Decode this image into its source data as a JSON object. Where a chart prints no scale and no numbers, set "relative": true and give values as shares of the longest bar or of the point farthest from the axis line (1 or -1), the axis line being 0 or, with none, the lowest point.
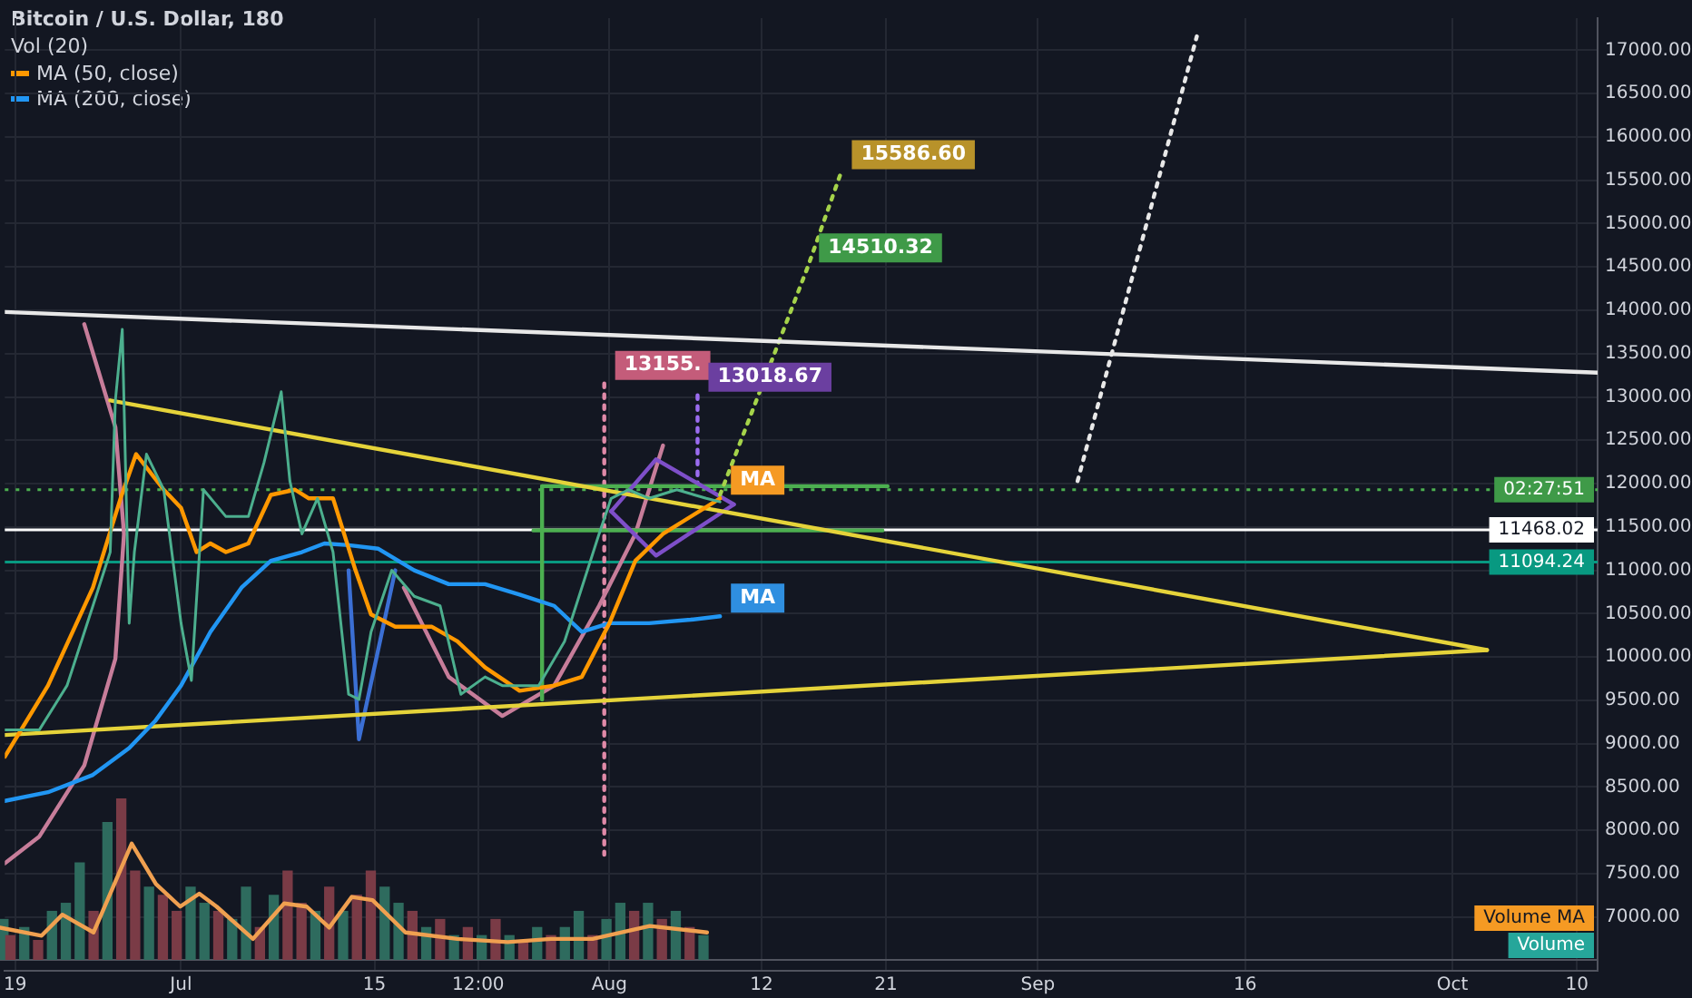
{
  "chart_data": [
    {
      "type": "line",
      "title": "Bitcoin / U.S. Dollar, 180",
      "legend": "top left",
      "grid": true,
      "marker": "none",
      "xlim": [
        "--06-18T06:00",
        "--10-11T12:00"
      ],
      "ylim": [
        6380,
        17370
      ],
      "xticks": [
        {
          "value": "--06-19",
          "label": "19"
        },
        {
          "value": "--07-01",
          "label": "Jul"
        },
        {
          "value": "--07-15",
          "label": "15"
        },
        {
          "value": "--07-22T12:00",
          "label": "12:00"
        },
        {
          "value": "--08-01",
          "label": "Aug"
        },
        {
          "value": "--08-12",
          "label": "12"
        },
        {
          "value": "--08-21",
          "label": "21"
        },
        {
          "value": "--09-01",
          "label": "Sep"
        },
        {
          "value": "--09-16",
          "label": "16"
        },
        {
          "value": "--10-01",
          "label": "Oct"
        },
        {
          "value": "--10-10",
          "label": "10"
        }
      ],
      "yticks": [
        {
          "value": 7000,
          "label": "7000.00"
        },
        {
          "value": 7500,
          "label": "7500.00"
        },
        {
          "value": 8000,
          "label": "8000.00"
        },
        {
          "value": 8500,
          "label": "8500.00"
        },
        {
          "value": 9000,
          "label": "9000.00"
        },
        {
          "value": 9500,
          "label": "9500.00"
        },
        {
          "value": 10000,
          "label": "10000.00"
        },
        {
          "value": 10500,
          "label": "10500.00"
        },
        {
          "value": 11000,
          "label": "11000.00"
        },
        {
          "value": 11500,
          "label": "11500.00"
        },
        {
          "value": 12000,
          "label": "12000.00"
        },
        {
          "value": 12500,
          "label": "12500.00"
        },
        {
          "value": 13000,
          "label": "13000.00"
        },
        {
          "value": 13500,
          "label": "13500.00"
        },
        {
          "value": 14000,
          "label": "14000.00"
        },
        {
          "value": 14500,
          "label": "14500.00"
        },
        {
          "value": 15000,
          "label": "15000.00"
        },
        {
          "value": 15500,
          "label": "15500.00"
        },
        {
          "value": 16000,
          "label": "16000.00"
        },
        {
          "value": 16500,
          "label": "16500.00"
        },
        {
          "value": 17000,
          "label": "17000.00"
        }
      ],
      "series": [
        {
          "color": "#4caf8e",
          "x": [
            "--06-18T06:00",
            "--06-20T18:00",
            "--06-22T18:00",
            "--06-24T15:00",
            "--06-25T21:00",
            "--06-26T06:00",
            "--06-26T18:00",
            "--06-27T06:00",
            "--06-27T15:00",
            "--06-28T12:00",
            "--06-29T18:00",
            "--07-01T00:00",
            "--07-01T18:00",
            "--07-02T15:00",
            "--07-04T06:00",
            "--07-05T21:00",
            "--07-07T00:00",
            "--07-08T06:00",
            "--07-08T21:00",
            "--07-09T18:00",
            "--07-10T21:00",
            "--07-12T00:00",
            "--07-13T03:00",
            "--07-13T21:00",
            "--07-14T18:00",
            "--07-16T06:00",
            "--07-17T21:00",
            "--07-19T18:00",
            "--07-21T06:00",
            "--07-23T00:00",
            "--07-24T06:00",
            "--07-26T21:00",
            "--07-28T18:00",
            "--07-30T00:00",
            "--07-31T06:00",
            "--08-01T03:00",
            "--08-02T09:00",
            "--08-03T21:00",
            "--08-05T21:00",
            "--08-08T00:00",
            "--08-09T00:00"
          ],
          "values": [
            9160,
            9160,
            9670,
            10590,
            11210,
            12960,
            13780,
            10390,
            11210,
            12340,
            11930,
            10390,
            9730,
            11930,
            11620,
            11620,
            12240,
            13060,
            12030,
            11420,
            11830,
            11210,
            9570,
            9510,
            10290,
            11000,
            10700,
            10590,
            9570,
            9770,
            9670,
            9670,
            10180,
            10800,
            11420,
            11830,
            11930,
            11830,
            11930,
            11830,
            11790
          ]
        },
        {
          "name": "MA (50, close)",
          "color": "#ff9800",
          "x": [
            "--06-18T06:00",
            "--06-21T09:00",
            "--06-24T15:00",
            "--06-26T15:00",
            "--06-27T18:00",
            "--06-29T18:00",
            "--07-01T00:00",
            "--07-02T03:00",
            "--07-03T03:00",
            "--07-04T06:00",
            "--07-05T21:00",
            "--07-07T12:00",
            "--07-09T06:00",
            "--07-10T06:00",
            "--07-12T00:00",
            "--07-13T15:00",
            "--07-14T18:00",
            "--07-16T12:00",
            "--07-19T03:00",
            "--07-21T00:00",
            "--07-23T00:00",
            "--07-25T12:00",
            "--07-28T00:00",
            "--07-30T00:00",
            "--08-01T00:00",
            "--08-02T21:00",
            "--08-04T21:00",
            "--08-09T00:00"
          ],
          "values": [
            8850,
            9670,
            10800,
            11830,
            12340,
            11930,
            11720,
            11210,
            11310,
            11210,
            11310,
            11870,
            11930,
            11830,
            11830,
            11000,
            10490,
            10350,
            10350,
            10180,
            9880,
            9610,
            9670,
            9770,
            10390,
            11110,
            11420,
            11830
          ]
        },
        {
          "name": "MA (200, close)",
          "color": "#2196f3",
          "x": [
            "--06-18T06:00",
            "--06-21T09:00",
            "--06-24T15:00",
            "--06-27T06:00",
            "--06-29T03:00",
            "--07-01T00:00",
            "--07-03T03:00",
            "--07-05T09:00",
            "--07-07T12:00",
            "--07-09T18:00",
            "--07-11T09:00",
            "--07-13T03:00",
            "--07-15T06:00",
            "--07-17T21:00",
            "--07-20T09:00",
            "--07-23T00:00",
            "--07-25T12:00",
            "--07-28T00:00",
            "--07-30T00:00",
            "--08-01T00:00",
            "--08-03T21:00",
            "--08-06T21:00",
            "--08-09T00:00"
          ],
          "values": [
            8340,
            8440,
            8640,
            8950,
            9260,
            9670,
            10290,
            10800,
            11110,
            11210,
            11310,
            11290,
            11250,
            11000,
            10840,
            10840,
            10720,
            10590,
            10290,
            10390,
            10390,
            10430,
            10470
          ]
        },
        {
          "color": "#e5d33a",
          "x": [
            "--06-25T21:00",
            "--10-03T12:00"
          ],
          "values": [
            12960,
            10080
          ]
        },
        {
          "color": "#e5d33a",
          "x": [
            "--06-18T06:00",
            "--10-03T12:00"
          ],
          "values": [
            9100,
            10080
          ]
        },
        {
          "color": "#e8e8e8",
          "x": [
            "--06-18T06:00",
            "--10-11T12:00"
          ],
          "values": [
            13980,
            13280
          ]
        },
        {
          "color": "#e8e8e8",
          "line_style": "dotted",
          "x": [
            "--09-03T21:00",
            "--09-12T12:00"
          ],
          "values": [
            12030,
            17160
          ]
        },
        {
          "color": "#a5d34a",
          "line_style": "dotted",
          "x": [
            "--08-09T00:00",
            "--08-15T09:00",
            "--08-17T18:00"
          ],
          "values": [
            11870,
            14510.32,
            15586.6
          ]
        },
        {
          "color": "#7e4fc9",
          "x": [
            "--08-01T03:00",
            "--08-04T09:00",
            "--08-10T00:00"
          ],
          "values": [
            11680,
            12280,
            11760
          ]
        },
        {
          "color": "#7e4fc9",
          "x": [
            "--08-01T03:00",
            "--08-04T09:00",
            "--08-10T00:00"
          ],
          "values": [
            11680,
            11170,
            11760
          ]
        },
        {
          "color": "#4caf50",
          "x": [
            "--07-27T03:00",
            "--07-27T03:00"
          ],
          "values": [
            11970,
            9510
          ]
        },
        {
          "color": "#4caf50",
          "x": [
            "--07-27T03:00",
            "--08-21T03:00"
          ],
          "values": [
            11970,
            11970
          ]
        },
        {
          "color": "#4caf50",
          "x": [
            "--07-26T12:00",
            "--08-20T18:00"
          ],
          "values": [
            11460,
            11460
          ]
        },
        {
          "color": "#c77d9a",
          "x": [
            "--06-24T00:00",
            "--06-26T06:00",
            "--06-26T21:00",
            "--06-26T06:00",
            "--06-24T00:00",
            "--06-20T18:00",
            "--06-18T06:00"
          ],
          "values": [
            13840,
            12650,
            11420,
            9980,
            8750,
            7930,
            7620
          ]
        },
        {
          "color": "#c77d9a",
          "x": [
            "--07-17T03:00",
            "--07-20T09:00",
            "--07-24T06:00",
            "--07-28T00:00",
            "--07-31T06:00",
            "--08-02T21:00",
            "--08-04T21:00"
          ],
          "values": [
            10800,
            9770,
            9320,
            9670,
            10590,
            11420,
            12440
          ]
        },
        {
          "color": "#3b6fd4",
          "x": [
            "--07-13T03:00",
            "--07-13T21:00",
            "--07-16T12:00"
          ],
          "values": [
            11000,
            9050,
            11000
          ]
        },
        {
          "color": "#e08aa8",
          "line_style": "dotted",
          "x": [
            "--07-31T15:00",
            "--07-31T15:00"
          ],
          "values": [
            13155,
            7720
          ]
        },
        {
          "color": "#9b6cf0",
          "line_style": "dotted",
          "x": [
            "--08-07T09:00",
            "--08-07T09:00"
          ],
          "values": [
            13018.67,
            11930
          ]
        }
      ],
      "ref_lines": [
        {
          "axis": "y",
          "value": 11930,
          "color": "#4caf50",
          "line_style": "dotted"
        },
        {
          "axis": "y",
          "value": 11468.02,
          "label": "11468.02",
          "color": "#ffffff"
        },
        {
          "axis": "y",
          "value": 11094.24,
          "label": "11094.24",
          "color": "#089981"
        }
      ],
      "annotations": [
        {
          "text": "15586.60",
          "x": "--08-17T18:00",
          "y": 15586.6
        },
        {
          "text": "14510.32",
          "x": "--08-15T09:00",
          "y": 14510.32
        },
        {
          "text": "13155.",
          "x": "--07-31T15:00",
          "y": 13155
        },
        {
          "text": "13018.67",
          "x": "--08-07T09:00",
          "y": 13018.67
        },
        {
          "text": "MA",
          "x": "--08-09T00:00",
          "y": 11830
        },
        {
          "text": "MA",
          "x": "--08-09T00:00",
          "y": 10470
        },
        {
          "text": "02:27:51",
          "y": 11930
        }
      ]
    },
    {
      "type": "bar",
      "title": "Vol (20)",
      "relative": true,
      "tick_labels": false,
      "marker": "none",
      "xlim": [
        "--06-18T06:00",
        "--10-11T12:00"
      ],
      "series": [
        {
          "x": [
            "--06-18T12:00",
            "--06-19",
            "--06-20",
            "--06-21",
            "--06-22",
            "--06-23",
            "--06-24",
            "--06-25",
            "--06-26",
            "--06-27",
            "--06-28",
            "--06-29",
            "--06-30",
            "--07-01",
            "--07-02",
            "--07-03",
            "--07-04",
            "--07-05",
            "--07-06",
            "--07-07",
            "--07-08",
            "--07-09",
            "--07-10",
            "--07-11",
            "--07-12",
            "--07-13",
            "--07-14",
            "--07-15",
            "--07-16",
            "--07-17",
            "--07-18",
            "--07-19",
            "--07-20",
            "--07-21",
            "--07-22",
            "--07-23",
            "--07-24",
            "--07-25",
            "--07-26",
            "--07-27",
            "--07-28",
            "--07-29",
            "--07-30",
            "--07-31",
            "--08-01",
            "--08-02",
            "--08-03",
            "--08-04",
            "--08-05",
            "--08-06",
            "--08-07",
            "--08-08"
          ],
          "values": [
            0.25,
            0.15,
            0.2,
            0.12,
            0.3,
            0.35,
            0.6,
            0.3,
            0.85,
            1,
            0.55,
            0.45,
            0.4,
            0.3,
            0.45,
            0.35,
            0.3,
            0.25,
            0.45,
            0.2,
            0.4,
            0.55,
            0.35,
            0.3,
            0.45,
            0.3,
            0.4,
            0.55,
            0.45,
            0.35,
            0.3,
            0.2,
            0.25,
            0.15,
            0.2,
            0.15,
            0.25,
            0.15,
            0.12,
            0.2,
            0.15,
            0.2,
            0.3,
            0.15,
            0.25,
            0.35,
            0.3,
            0.35,
            0.25,
            0.3,
            0.2,
            0.15
          ],
          "colors": [
            "#2e6b5e",
            "#7a3b46",
            "#2e6b5e",
            "#7a3b46",
            "#2e6b5e",
            "#2e6b5e",
            "#2e6b5e",
            "#7a3b46",
            "#2e6b5e",
            "#7a3b46",
            "#7a3b46",
            "#2e6b5e",
            "#7a3b46",
            "#7a3b46",
            "#2e6b5e",
            "#2e6b5e",
            "#7a3b46",
            "#2e6b5e",
            "#2e6b5e",
            "#7a3b46",
            "#2e6b5e",
            "#7a3b46",
            "#7a3b46",
            "#2e6b5e",
            "#7a3b46",
            "#2e6b5e",
            "#7a3b46",
            "#7a3b46",
            "#2e6b5e",
            "#2e6b5e",
            "#7a3b46",
            "#2e6b5e",
            "#7a3b46",
            "#2e6b5e",
            "#7a3b46",
            "#2e6b5e",
            "#7a3b46",
            "#2e6b5e",
            "#7a3b46",
            "#2e6b5e",
            "#7a3b46",
            "#2e6b5e",
            "#2e6b5e",
            "#7a3b46",
            "#2e6b5e",
            "#2e6b5e",
            "#7a3b46",
            "#2e6b5e",
            "#7a3b46",
            "#2e6b5e",
            "#7a3b46",
            "#2e6b5e"
          ]
        },
        {
          "type": "line",
          "color": "#f0a050",
          "x": [
            "--06-18T06:00",
            "--06-21T06:00",
            "--06-22T18:00",
            "--06-25T00:00",
            "--06-26T12:00",
            "--06-27T18:00",
            "--06-29T12:00",
            "--07-01T06:00",
            "--07-02T15:00",
            "--07-03T21:00",
            "--07-06T12:00",
            "--07-08T18:00",
            "--07-10T09:00",
            "--07-12T00:00",
            "--07-13T15:00",
            "--07-15T03:00",
            "--07-17T12:00",
            "--07-21T06:00",
            "--07-24T21:00",
            "--07-28T00:00",
            "--07-31T00:00",
            "--08-04T03:00",
            "--08-08T06:00"
          ],
          "values": [
            0.2,
            0.15,
            0.28,
            0.17,
            0.47,
            0.72,
            0.47,
            0.33,
            0.41,
            0.33,
            0.13,
            0.35,
            0.33,
            0.2,
            0.39,
            0.37,
            0.17,
            0.13,
            0.11,
            0.13,
            0.13,
            0.21,
            0.17
          ]
        }
      ],
      "annotations": [
        "Volume MA",
        "Volume"
      ]
    }
  ]
}
